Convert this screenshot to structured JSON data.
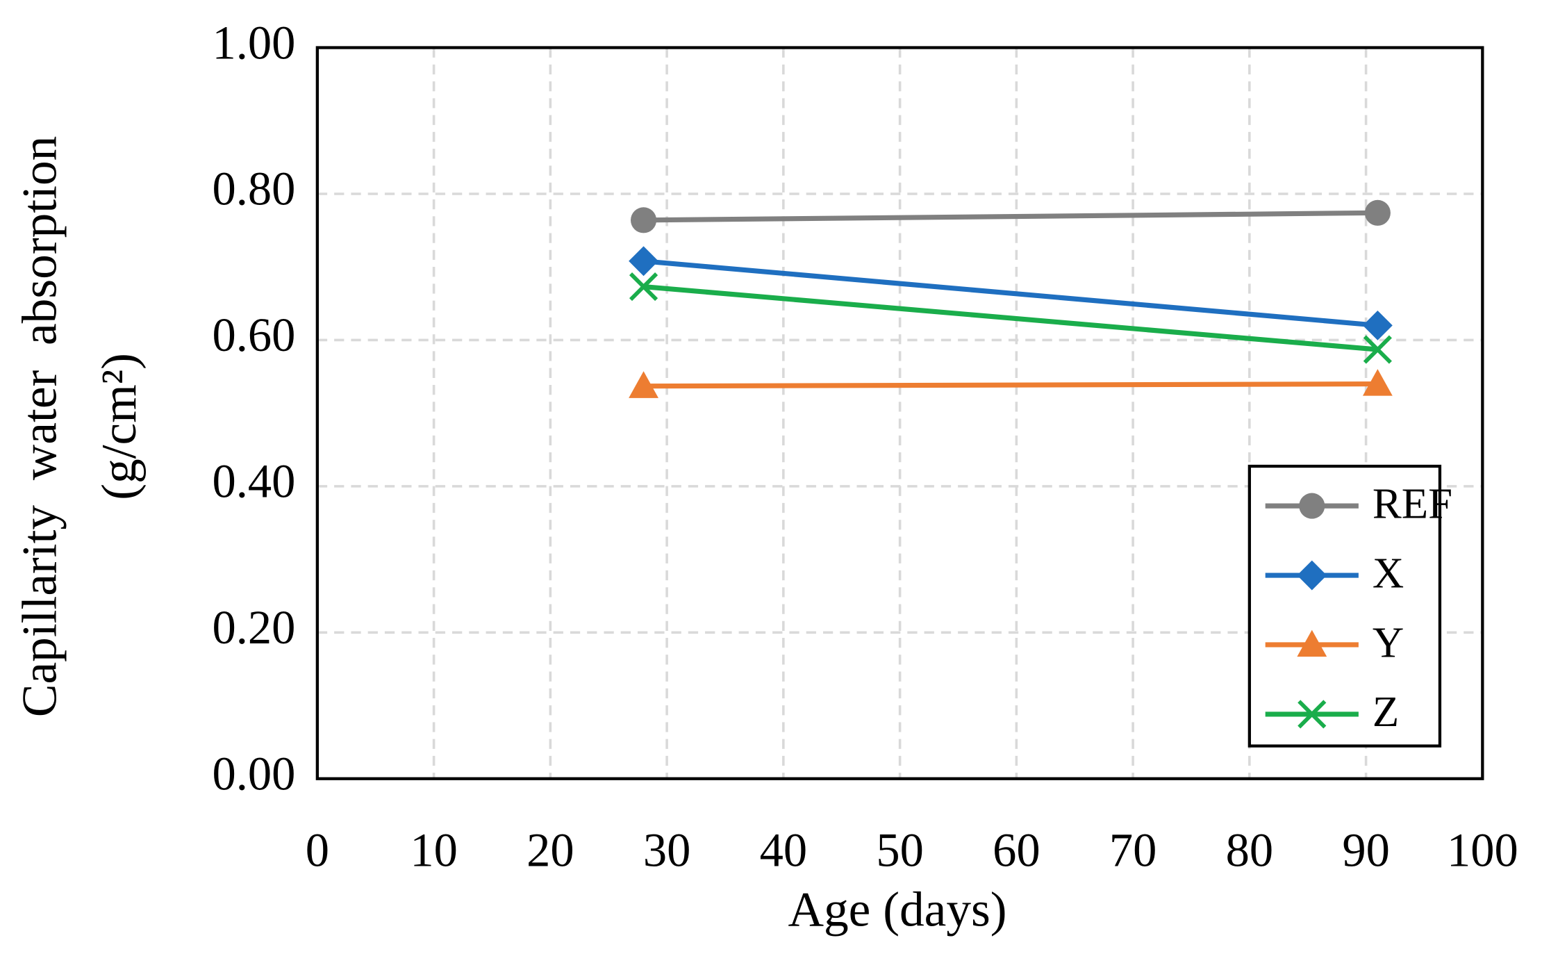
{
  "chart_data": {
    "type": "line",
    "x_label": "Age (days)",
    "y_label": "Capillarity  water  absorption",
    "y_label_unit": "(g/cm²)",
    "x": [
      28,
      91
    ],
    "series": [
      {
        "name": "REF",
        "color": "#808080",
        "marker": "circle",
        "values": [
          0.764,
          0.774
        ]
      },
      {
        "name": "X",
        "color": "#1f6fc0",
        "marker": "diamond",
        "values": [
          0.708,
          0.62
        ]
      },
      {
        "name": "Y",
        "color": "#ed7d31",
        "marker": "triangle",
        "values": [
          0.537,
          0.54
        ]
      },
      {
        "name": "Z",
        "color": "#1aad4b",
        "marker": "x",
        "values": [
          0.673,
          0.587
        ]
      }
    ],
    "xlim": [
      0,
      100
    ],
    "xticks": [
      0,
      10,
      20,
      30,
      40,
      50,
      60,
      70,
      80,
      90,
      100
    ],
    "ylim": [
      0,
      1
    ],
    "yticks": [
      {
        "value": 0,
        "label": "0.00"
      },
      {
        "value": 0.2,
        "label": "0.20"
      },
      {
        "value": 0.4,
        "label": "0.40"
      },
      {
        "value": 0.6,
        "label": "0.60"
      },
      {
        "value": 0.8,
        "label": "0.80"
      },
      {
        "value": 1,
        "label": "1.00"
      }
    ],
    "grid": true,
    "legend": "lower right"
  }
}
